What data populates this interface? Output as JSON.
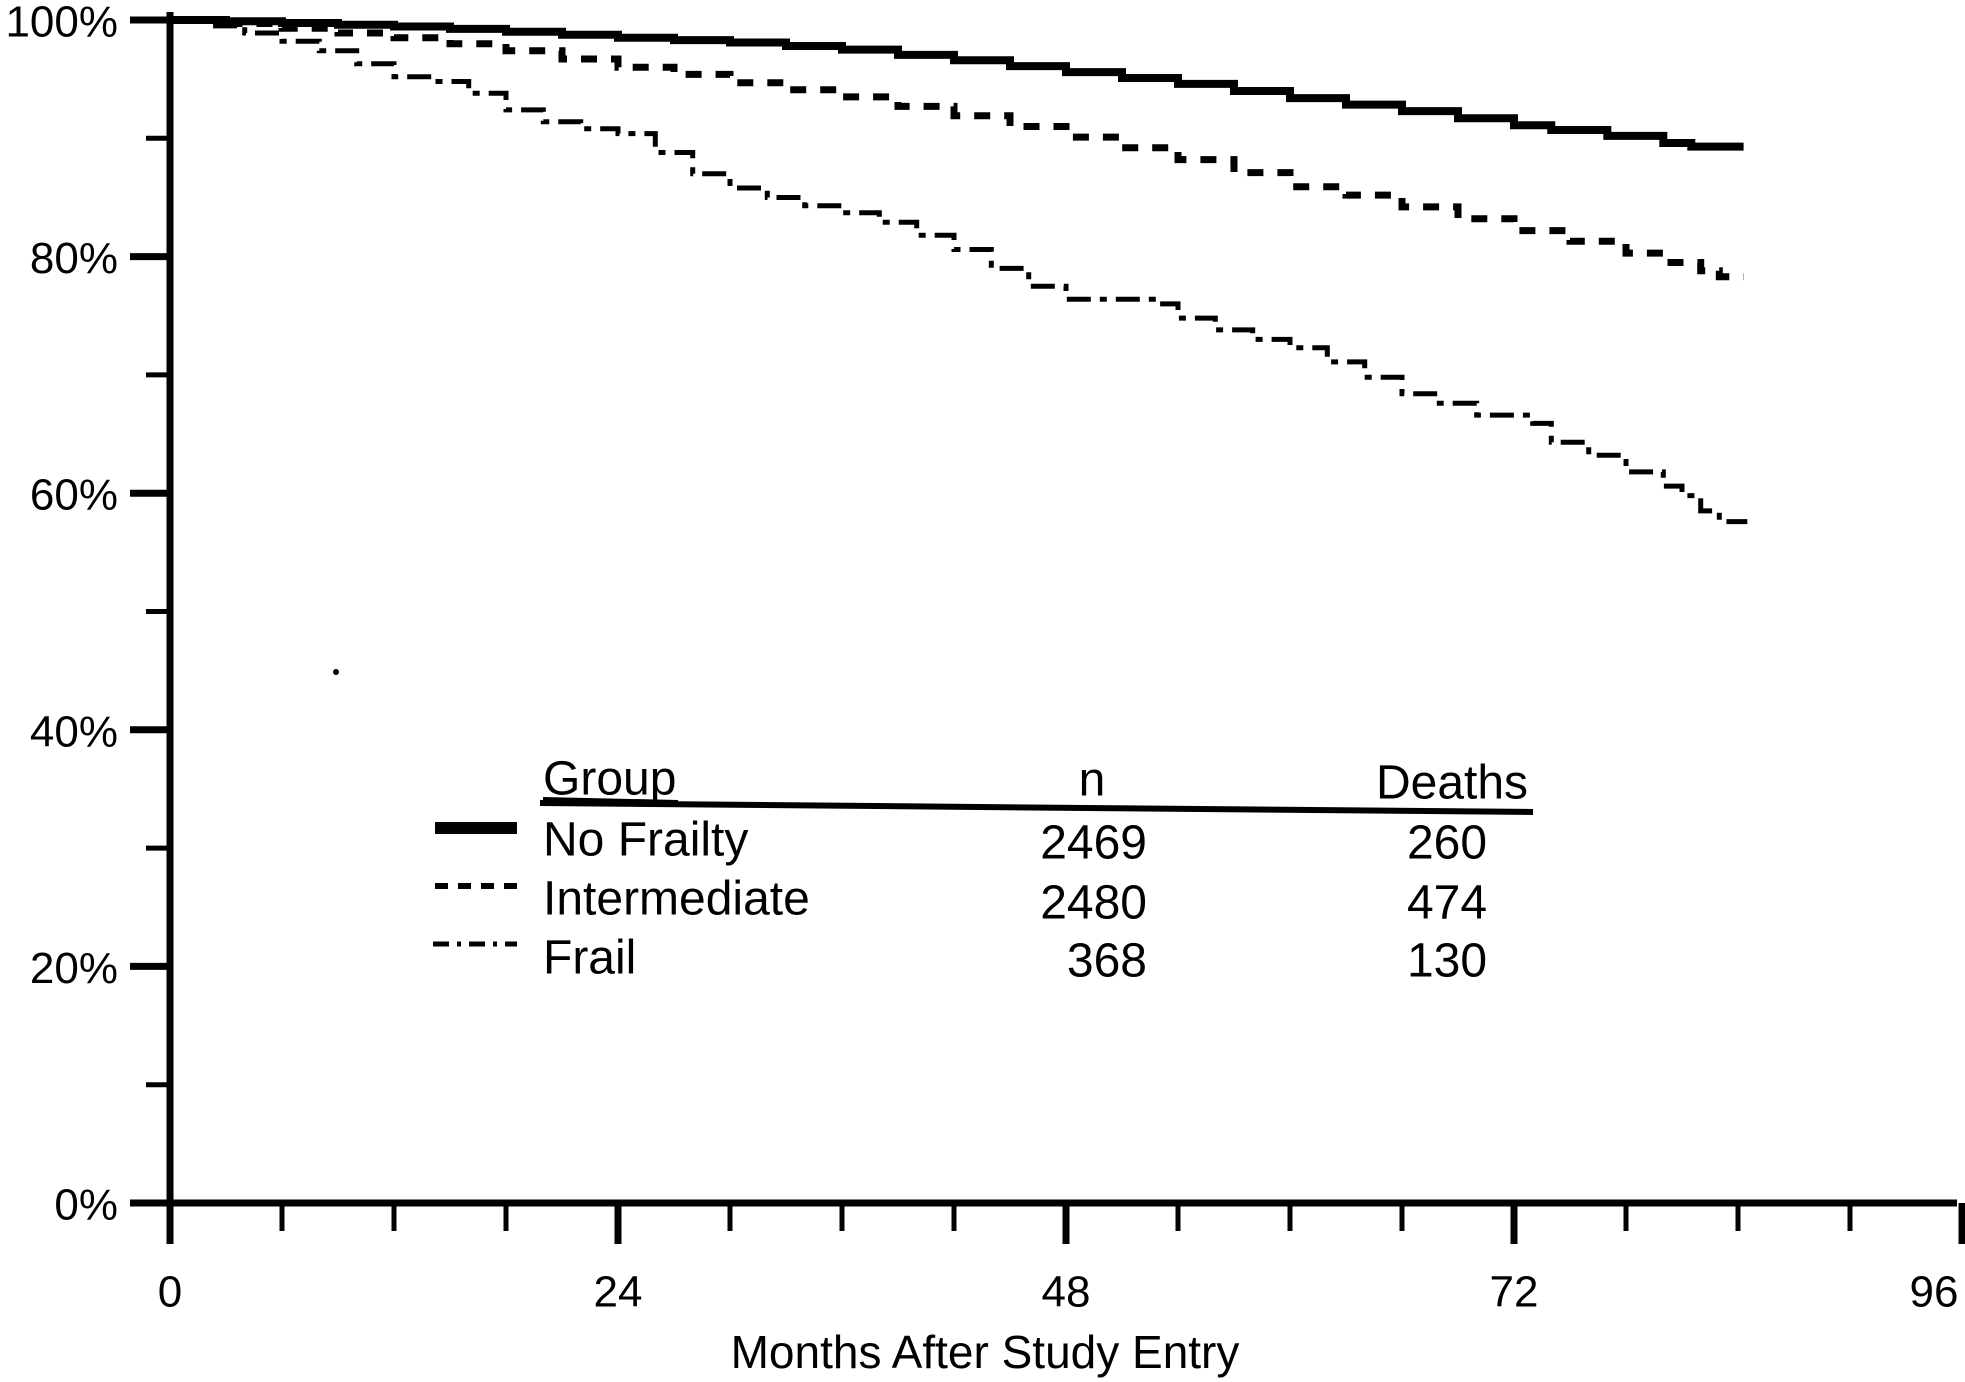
{
  "figure": {
    "background_color": "#ffffff",
    "ink_color": "#000000",
    "description": "Kaplan-Meier survival curves by frailty group"
  },
  "chart_data": {
    "type": "line",
    "subtype": "kaplan-meier-step",
    "title": "",
    "xlabel": "Months After Study Entry",
    "ylabel": "",
    "y_tick_suffix": "%",
    "xlim": [
      0,
      96
    ],
    "ylim": [
      0,
      100
    ],
    "x_ticks_major": [
      0,
      24,
      48,
      72,
      96
    ],
    "x_ticks_minor": [
      6,
      12,
      18,
      30,
      36,
      42,
      54,
      60,
      66,
      78,
      84,
      90
    ],
    "y_ticks_major": [
      0,
      20,
      40,
      60,
      80,
      100
    ],
    "y_ticks_minor": [
      10,
      30,
      50,
      70,
      90
    ],
    "grid": false,
    "legend": {
      "position": "inside-lower-center",
      "headers": [
        "Group",
        "n",
        "Deaths"
      ]
    },
    "series": [
      {
        "name": "No Frailty",
        "n": 2469,
        "deaths": 260,
        "style": "solid",
        "points": [
          [
            0,
            100
          ],
          [
            3,
            99.9
          ],
          [
            6,
            99.75
          ],
          [
            9,
            99.6
          ],
          [
            12,
            99.45
          ],
          [
            15,
            99.25
          ],
          [
            18,
            99.0
          ],
          [
            21,
            98.75
          ],
          [
            24,
            98.5
          ],
          [
            27,
            98.3
          ],
          [
            30,
            98.1
          ],
          [
            33,
            97.8
          ],
          [
            36,
            97.5
          ],
          [
            39,
            97.05
          ],
          [
            42,
            96.6
          ],
          [
            45,
            96.1
          ],
          [
            48,
            95.6
          ],
          [
            51,
            95.1
          ],
          [
            54,
            94.6
          ],
          [
            57,
            94.0
          ],
          [
            60,
            93.4
          ],
          [
            63,
            92.85
          ],
          [
            66,
            92.3
          ],
          [
            69,
            91.7
          ],
          [
            72,
            91.1
          ],
          [
            74,
            90.7
          ],
          [
            77,
            90.2
          ],
          [
            80,
            89.6
          ],
          [
            81.5,
            89.3
          ],
          [
            84.3,
            89.3
          ]
        ]
      },
      {
        "name": "Intermediate",
        "n": 2480,
        "deaths": 474,
        "style": "dashed",
        "points": [
          [
            0,
            100
          ],
          [
            3,
            99.7
          ],
          [
            6,
            99.3
          ],
          [
            9,
            98.9
          ],
          [
            12,
            98.5
          ],
          [
            15,
            98.0
          ],
          [
            18,
            97.4
          ],
          [
            21,
            96.7
          ],
          [
            24,
            96.0
          ],
          [
            27,
            95.4
          ],
          [
            30,
            94.7
          ],
          [
            33,
            94.1
          ],
          [
            36,
            93.5
          ],
          [
            39,
            92.7
          ],
          [
            42,
            91.9
          ],
          [
            45,
            91.0
          ],
          [
            48,
            90.1
          ],
          [
            51,
            89.2
          ],
          [
            54,
            88.2
          ],
          [
            57,
            87.1
          ],
          [
            60,
            85.9
          ],
          [
            63,
            85.2
          ],
          [
            66,
            84.2
          ],
          [
            69,
            83.2
          ],
          [
            72,
            82.2
          ],
          [
            75,
            81.3
          ],
          [
            78,
            80.3
          ],
          [
            80,
            79.5
          ],
          [
            82,
            78.8
          ],
          [
            83,
            78.3
          ],
          [
            84.3,
            78.3
          ]
        ]
      },
      {
        "name": "Frail",
        "n": 368,
        "deaths": 130,
        "style": "dashdot",
        "points": [
          [
            0,
            100
          ],
          [
            2,
            99.5
          ],
          [
            4,
            98.9
          ],
          [
            6,
            98.2
          ],
          [
            8,
            97.4
          ],
          [
            10,
            96.3
          ],
          [
            12,
            95.2
          ],
          [
            14,
            94.8
          ],
          [
            16,
            93.8
          ],
          [
            18,
            92.4
          ],
          [
            20,
            91.4
          ],
          [
            22,
            90.8
          ],
          [
            24,
            90.4
          ],
          [
            26,
            88.8
          ],
          [
            28,
            87.0
          ],
          [
            30,
            85.8
          ],
          [
            32,
            85.0
          ],
          [
            34,
            84.3
          ],
          [
            36,
            83.7
          ],
          [
            38,
            82.9
          ],
          [
            40,
            81.8
          ],
          [
            42,
            80.6
          ],
          [
            44,
            79.0
          ],
          [
            46,
            77.5
          ],
          [
            48,
            76.4
          ],
          [
            53,
            76.0
          ],
          [
            54,
            74.8
          ],
          [
            56,
            73.8
          ],
          [
            58,
            73.0
          ],
          [
            60,
            72.3
          ],
          [
            62,
            71.1
          ],
          [
            64,
            69.8
          ],
          [
            66,
            68.4
          ],
          [
            68,
            67.6
          ],
          [
            70,
            66.6
          ],
          [
            73,
            65.9
          ],
          [
            74,
            64.3
          ],
          [
            76,
            63.2
          ],
          [
            78,
            61.8
          ],
          [
            80,
            60.6
          ],
          [
            81,
            59.8
          ],
          [
            82,
            58.5
          ],
          [
            83,
            57.6
          ],
          [
            84.5,
            57.6
          ]
        ]
      }
    ]
  }
}
